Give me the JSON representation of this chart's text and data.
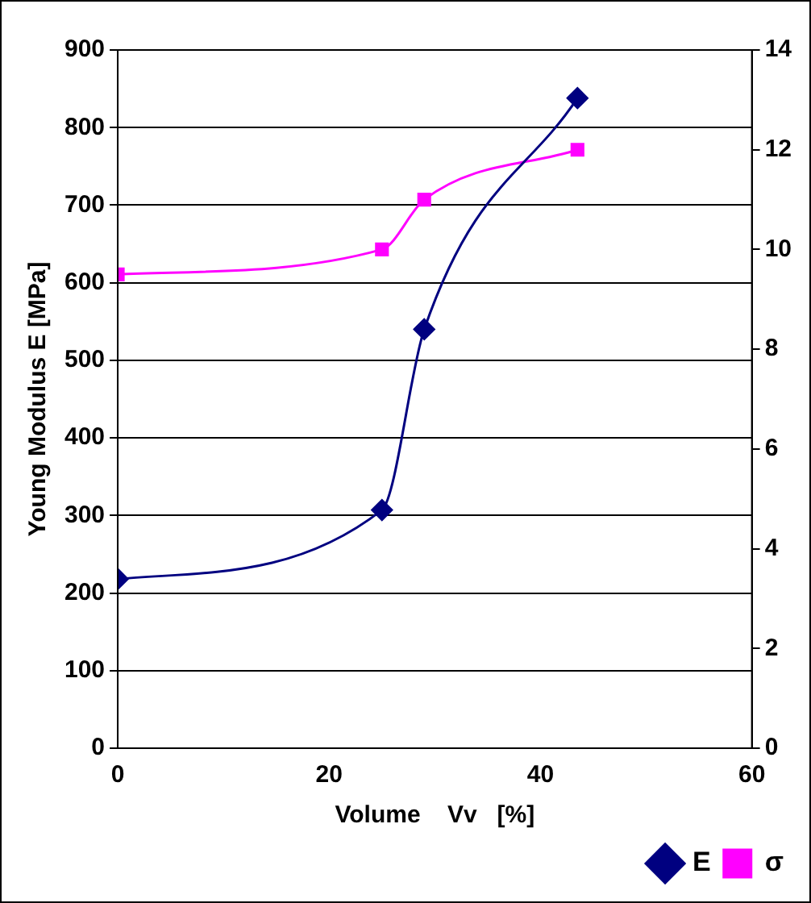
{
  "chart_data": {
    "type": "line",
    "xlabel": "Volume    Vv   [%]",
    "ylabel": "Young Modulus E [MPa]",
    "x": [
      0,
      25,
      29,
      43.5
    ],
    "series": [
      {
        "name": "E",
        "color": "#000080",
        "marker": "diamond",
        "values": [
          218,
          307,
          540,
          838
        ]
      },
      {
        "name": "σ",
        "color": "#ff00ff",
        "marker": "square",
        "axis": "y2",
        "values": [
          9.5,
          10,
          11,
          12
        ]
      }
    ],
    "xlim": [
      0,
      60
    ],
    "xticks": [
      0,
      20,
      40,
      60
    ],
    "ylim": [
      0,
      900
    ],
    "yticks": [
      0,
      100,
      200,
      300,
      400,
      500,
      600,
      700,
      800,
      900
    ],
    "y2lim": [
      0,
      14
    ],
    "y2ticks": [
      0,
      2,
      4,
      6,
      8,
      10,
      12,
      14
    ],
    "grid": "y",
    "legend": "bottom right"
  }
}
